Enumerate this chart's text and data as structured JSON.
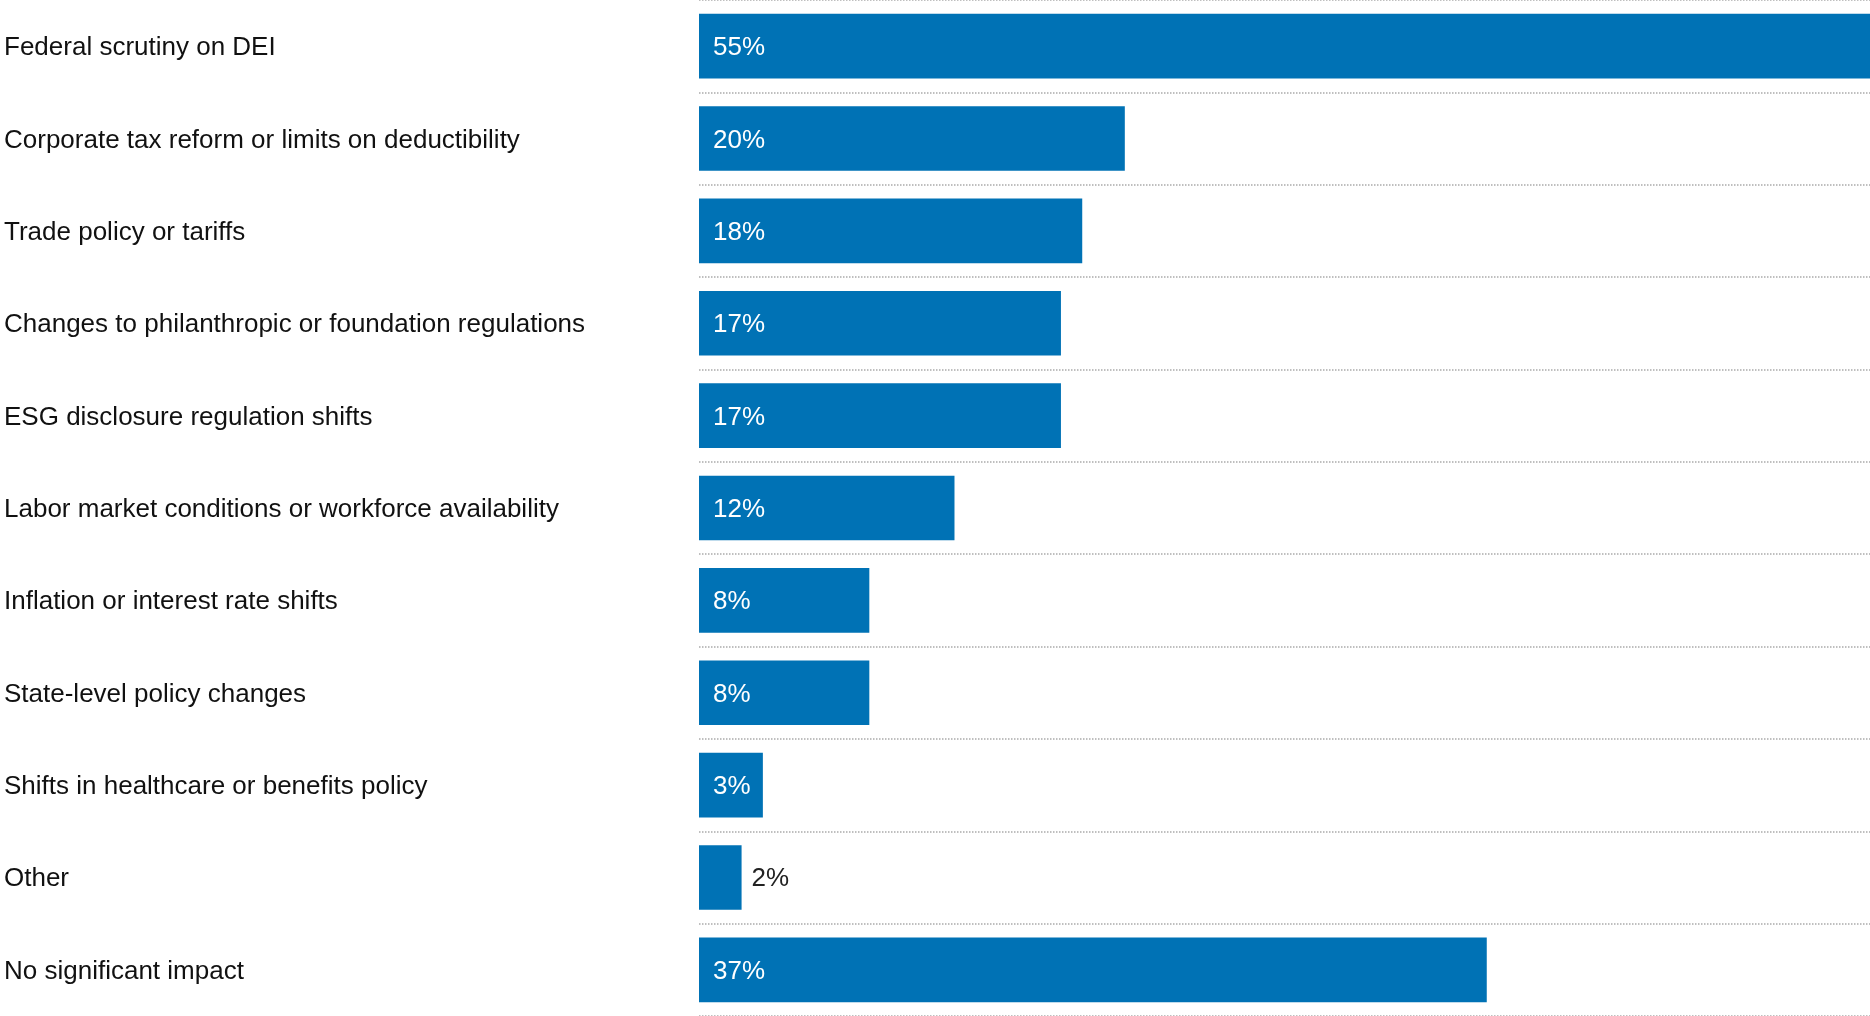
{
  "chart_data": {
    "type": "bar",
    "orientation": "horizontal",
    "categories": [
      "Federal scrutiny on DEI",
      "Corporate tax reform or limits on deductibility",
      "Trade policy or tariffs",
      "Changes to philanthropic or foundation regulations",
      "ESG disclosure regulation shifts",
      "Labor market conditions or workforce availability",
      "Inflation or interest rate shifts",
      "State-level policy changes",
      "Shifts in healthcare or benefits policy",
      "Other",
      "No significant impact"
    ],
    "values": [
      55,
      20,
      18,
      17,
      17,
      12,
      8,
      8,
      3,
      2,
      37
    ],
    "value_labels": [
      "55%",
      "20%",
      "18%",
      "17%",
      "17%",
      "12%",
      "8%",
      "8%",
      "3%",
      "2%",
      "37%"
    ],
    "color": "#0072b5",
    "tick_labels": "y",
    "grid": "y"
  }
}
